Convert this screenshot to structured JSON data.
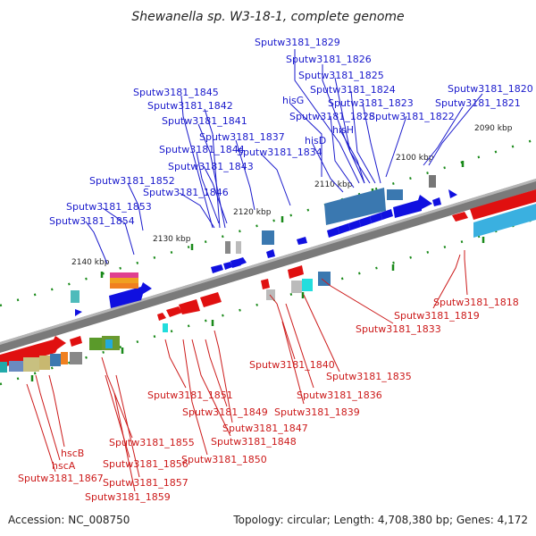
{
  "title": "Shewanella sp. W3-18-1, complete genome",
  "footer": {
    "accession": "Accession: NC_008750",
    "summary": "Topology: circular; Length: 4,708,380 bp; Genes: 4,172"
  },
  "kbp_labels": [
    "2090 kbp",
    "2100 kbp",
    "2110 kbp",
    "2120 kbp",
    "2130 kbp",
    "2140 kbp"
  ],
  "labels_top": [
    "Sputw3181_1829",
    "Sputw3181_1826",
    "Sputw3181_1825",
    "Sputw3181_1824",
    "hisG",
    "Sputw3181_1823",
    "Sputw3181_1828",
    "Sputw3181_1822",
    "hisH",
    "hisD",
    "Sputw3181_1820",
    "Sputw3181_1821",
    "Sputw3181_1845",
    "Sputw3181_1842",
    "Sputw3181_1841",
    "Sputw3181_1837",
    "Sputw3181_1844",
    "Sputw3181_1834",
    "Sputw3181_1843",
    "Sputw3181_1852",
    "Sputw3181_1846",
    "Sputw3181_1853",
    "Sputw3181_1854"
  ],
  "labels_bottom": [
    "Sputw3181_1818",
    "Sputw3181_1819",
    "Sputw3181_1833",
    "Sputw3181_1840",
    "Sputw3181_1835",
    "Sputw3181_1836",
    "Sputw3181_1839",
    "Sputw3181_1851",
    "Sputw3181_1849",
    "Sputw3181_1847",
    "Sputw3181_1848",
    "Sputw3181_1850",
    "Sputw3181_1855",
    "Sputw3181_1856",
    "Sputw3181_1857",
    "Sputw3181_1859",
    "hscB",
    "hscA",
    "Sputw3181_1867"
  ],
  "colors": {
    "forward": "#1010e0",
    "reverse": "#e01010",
    "backbone": "#7a7a7a",
    "tick": "#1a8a1a"
  }
}
